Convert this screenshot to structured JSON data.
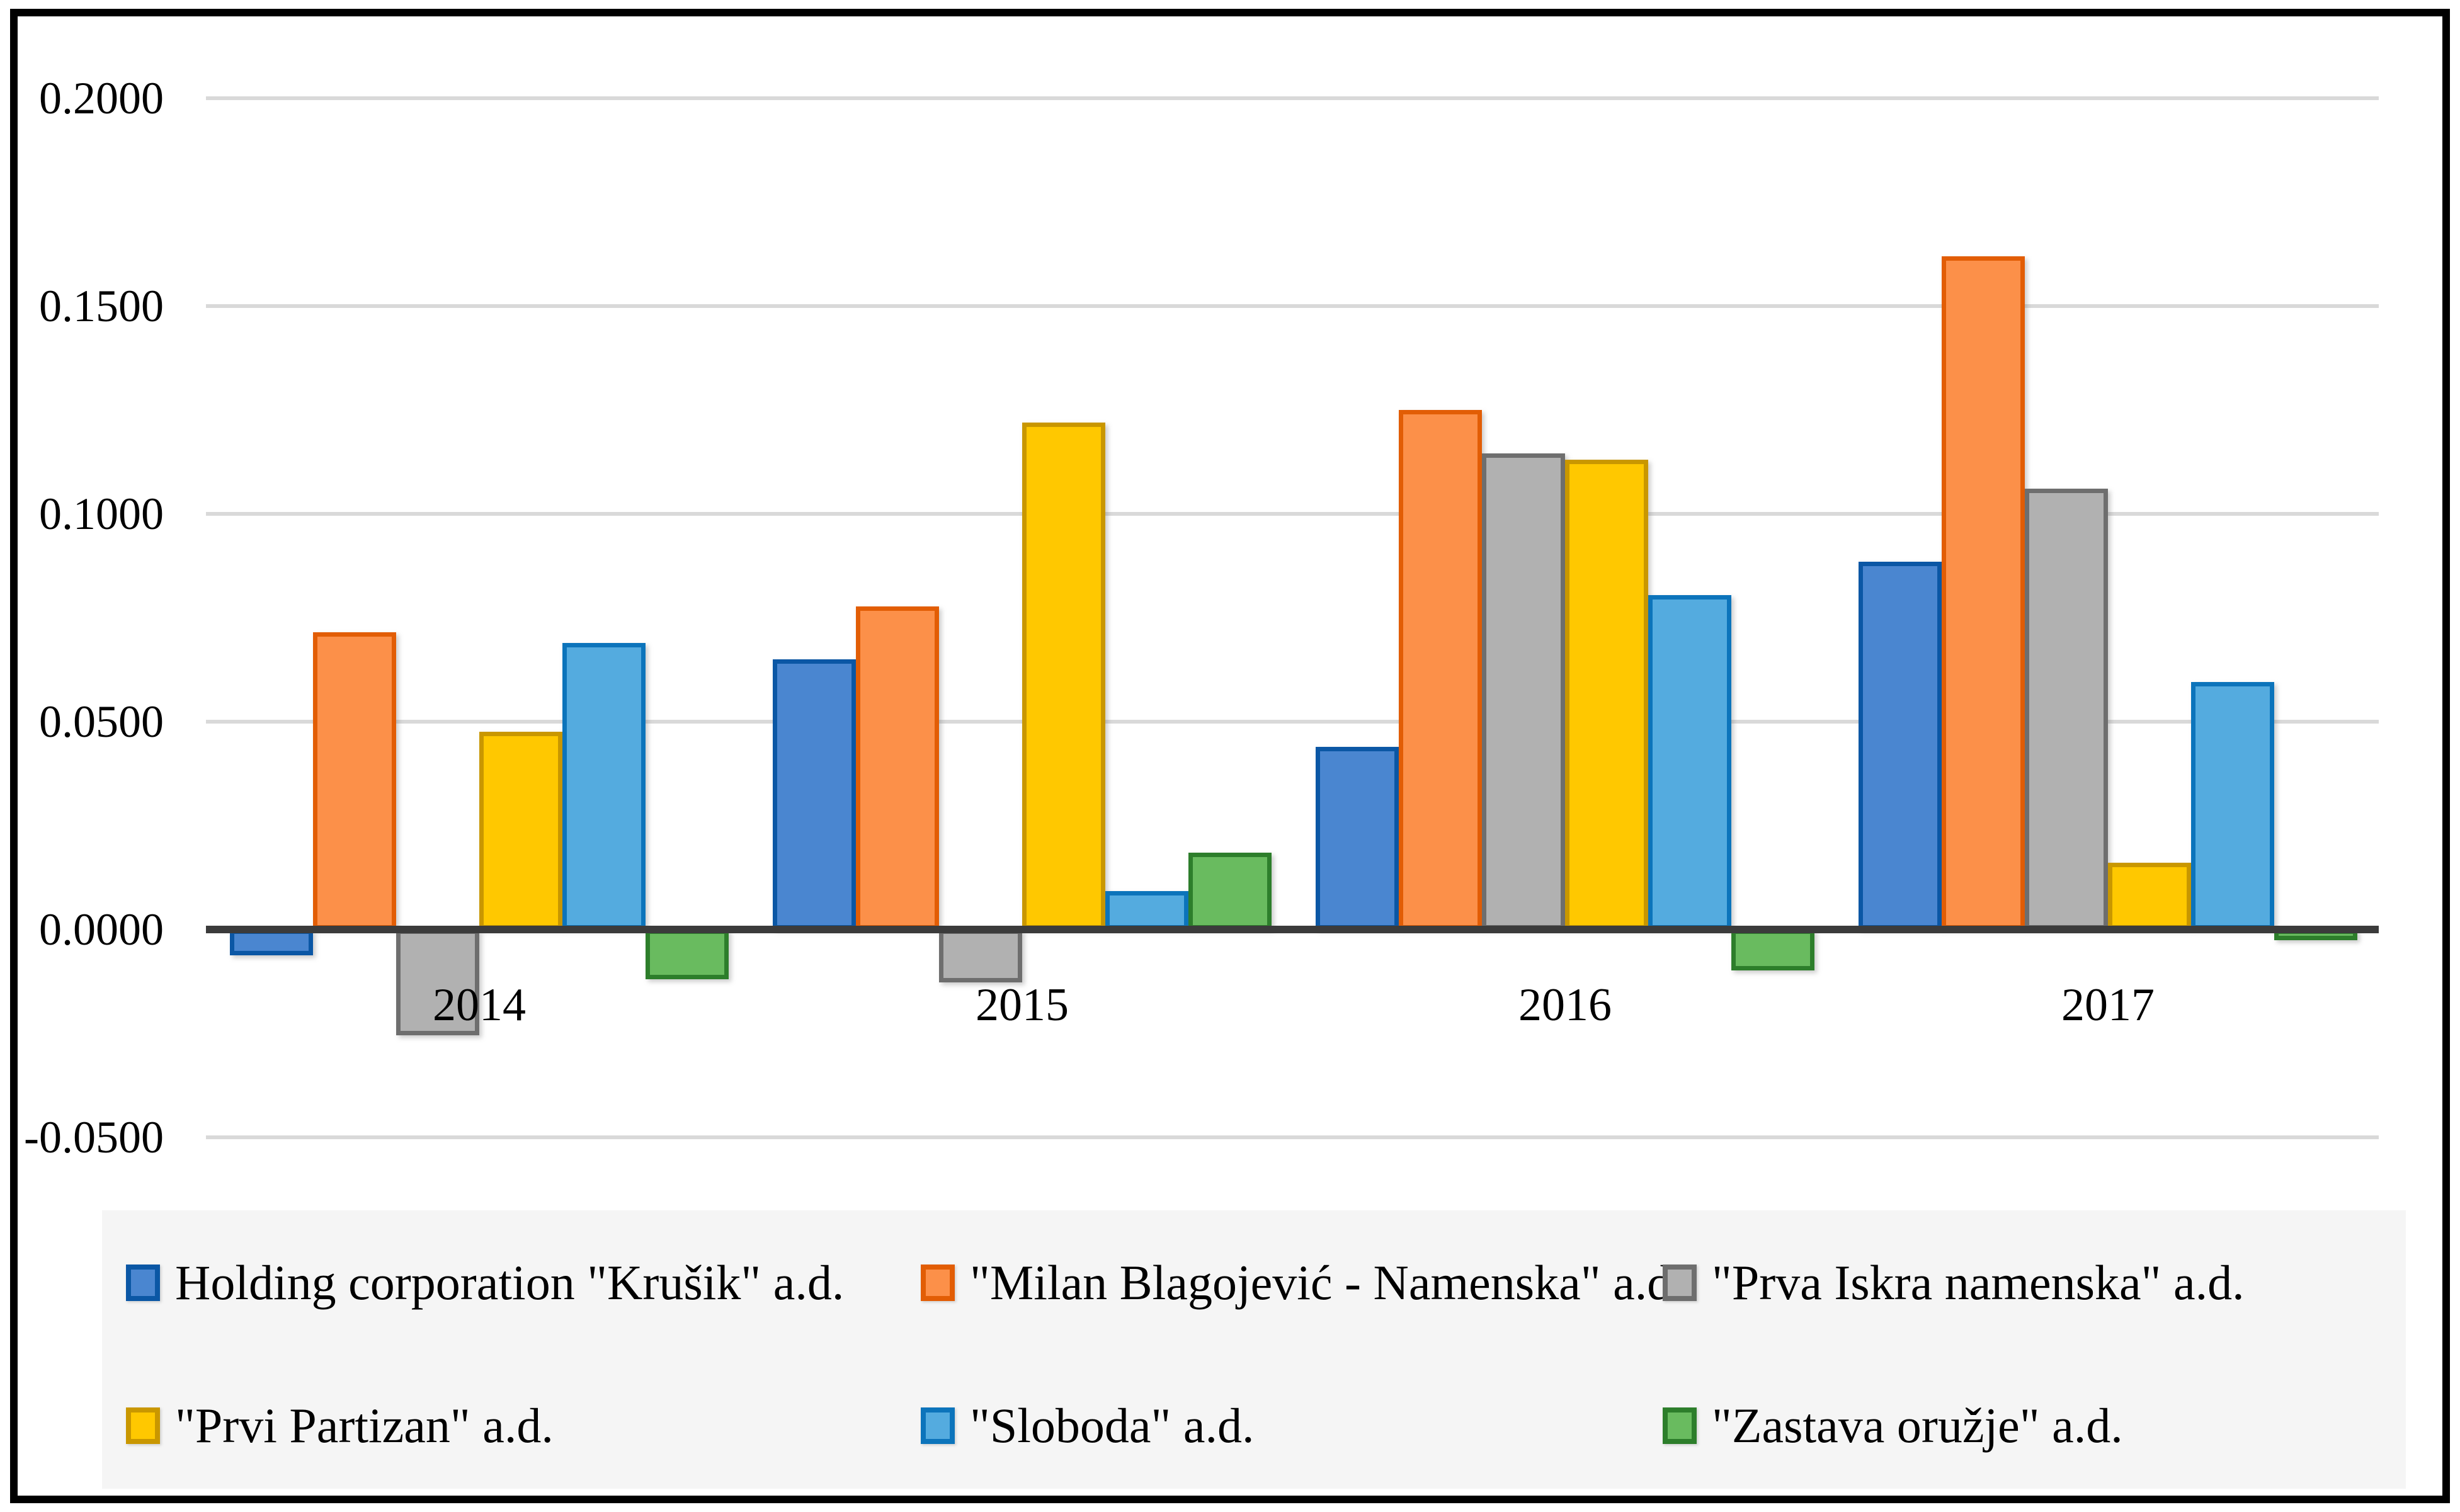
{
  "chart_data": {
    "type": "bar",
    "title": "",
    "xlabel": "",
    "ylabel": "",
    "categories": [
      "2014",
      "2015",
      "2016",
      "2017"
    ],
    "series": [
      {
        "name": "Holding corporation \"Krušik\" a.d.",
        "fill": "#4A86D0",
        "border": "#0B57A5",
        "values": [
          -0.0062,
          0.065,
          0.044,
          0.0885
        ]
      },
      {
        "name": "\"Milan Blagojević - Namenska\" a.d.",
        "fill": "#FC9049",
        "border": "#E25D05",
        "values": [
          0.0715,
          0.0777,
          0.125,
          0.162
        ]
      },
      {
        "name": "\"Prva Iskra namenska\" a.d.",
        "fill": "#B1B1B1",
        "border": "#6E6E6E",
        "values": [
          -0.0255,
          -0.0128,
          0.1145,
          0.106
        ]
      },
      {
        "name": "\"Prvi Partizan\" a.d.",
        "fill": "#FFC800",
        "border": "#C99700",
        "values": [
          0.0475,
          0.122,
          0.113,
          0.016
        ]
      },
      {
        "name": "\"Sloboda\" a.d.",
        "fill": "#54ABDF",
        "border": "#0C74BB",
        "values": [
          0.069,
          0.0092,
          0.0805,
          0.0595
        ]
      },
      {
        "name": "\"Zastava oružje\" a.d.",
        "fill": "#69BB5F",
        "border": "#2D7E2B",
        "values": [
          -0.012,
          0.0185,
          -0.0098,
          -0.0025
        ]
      }
    ],
    "y_axis": {
      "tick_labels": [
        "0.2000",
        "0.1500",
        "0.1000",
        "0.0500",
        "0.0000",
        "-0.0500"
      ],
      "tick_values": [
        0.2,
        0.15,
        0.1,
        0.05,
        0.0,
        -0.05
      ]
    },
    "ylim": [
      -0.0635,
      0.2147
    ],
    "grid": "horizontal",
    "legend_position": "bottom"
  },
  "colors": {
    "axis_line": "#3B3B3B",
    "gridline": "#D9D9D9",
    "legend_background": "#F5F5F5",
    "frame": "#000000",
    "plot_background": "#FFFFFF"
  }
}
